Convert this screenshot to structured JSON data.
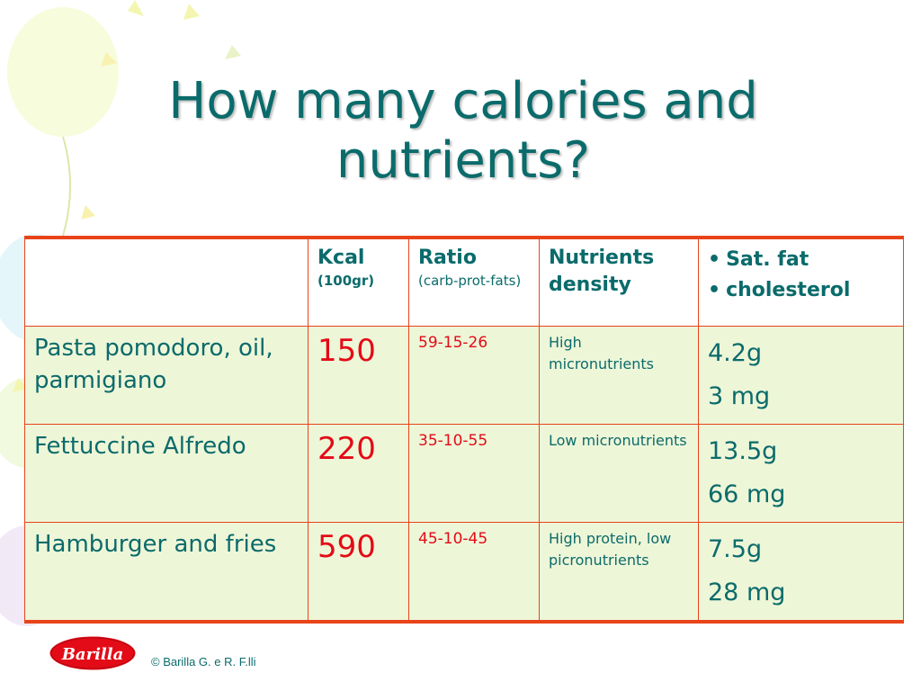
{
  "title": "How many calories and nutrients?",
  "table": {
    "header": {
      "kcal": "Kcal",
      "kcal_sub": "(100gr)",
      "ratio": "Ratio",
      "ratio_sub": "(carb-prot-fats)",
      "density": "Nutrients density",
      "bullets": [
        "Sat. fat",
        "cholesterol"
      ]
    },
    "rows": [
      {
        "food": "Pasta pomodoro, oil, parmigiano",
        "kcal": "150",
        "ratio": "59-15-26",
        "density": "High micronutrients",
        "sat_fat": "4.2g",
        "cholesterol": "3 mg"
      },
      {
        "food": "Fettuccine Alfredo",
        "kcal": "220",
        "ratio": "35-10-55",
        "density": "Low micronutrients",
        "sat_fat": "13.5g",
        "cholesterol": "66 mg"
      },
      {
        "food": "Hamburger and fries",
        "kcal": "590",
        "ratio": "45-10-45",
        "density": "High protein, low picronutrients",
        "sat_fat": "7.5g",
        "cholesterol": "28 mg"
      }
    ]
  },
  "footer": {
    "logo_text": "Barilla",
    "copyright": "© Barilla G. e R. F.lli"
  },
  "colors": {
    "text_teal": "#0b6b6b",
    "accent_red": "#e30b17",
    "border_orange": "#e8441a",
    "row_fill": "#eef6d8"
  }
}
